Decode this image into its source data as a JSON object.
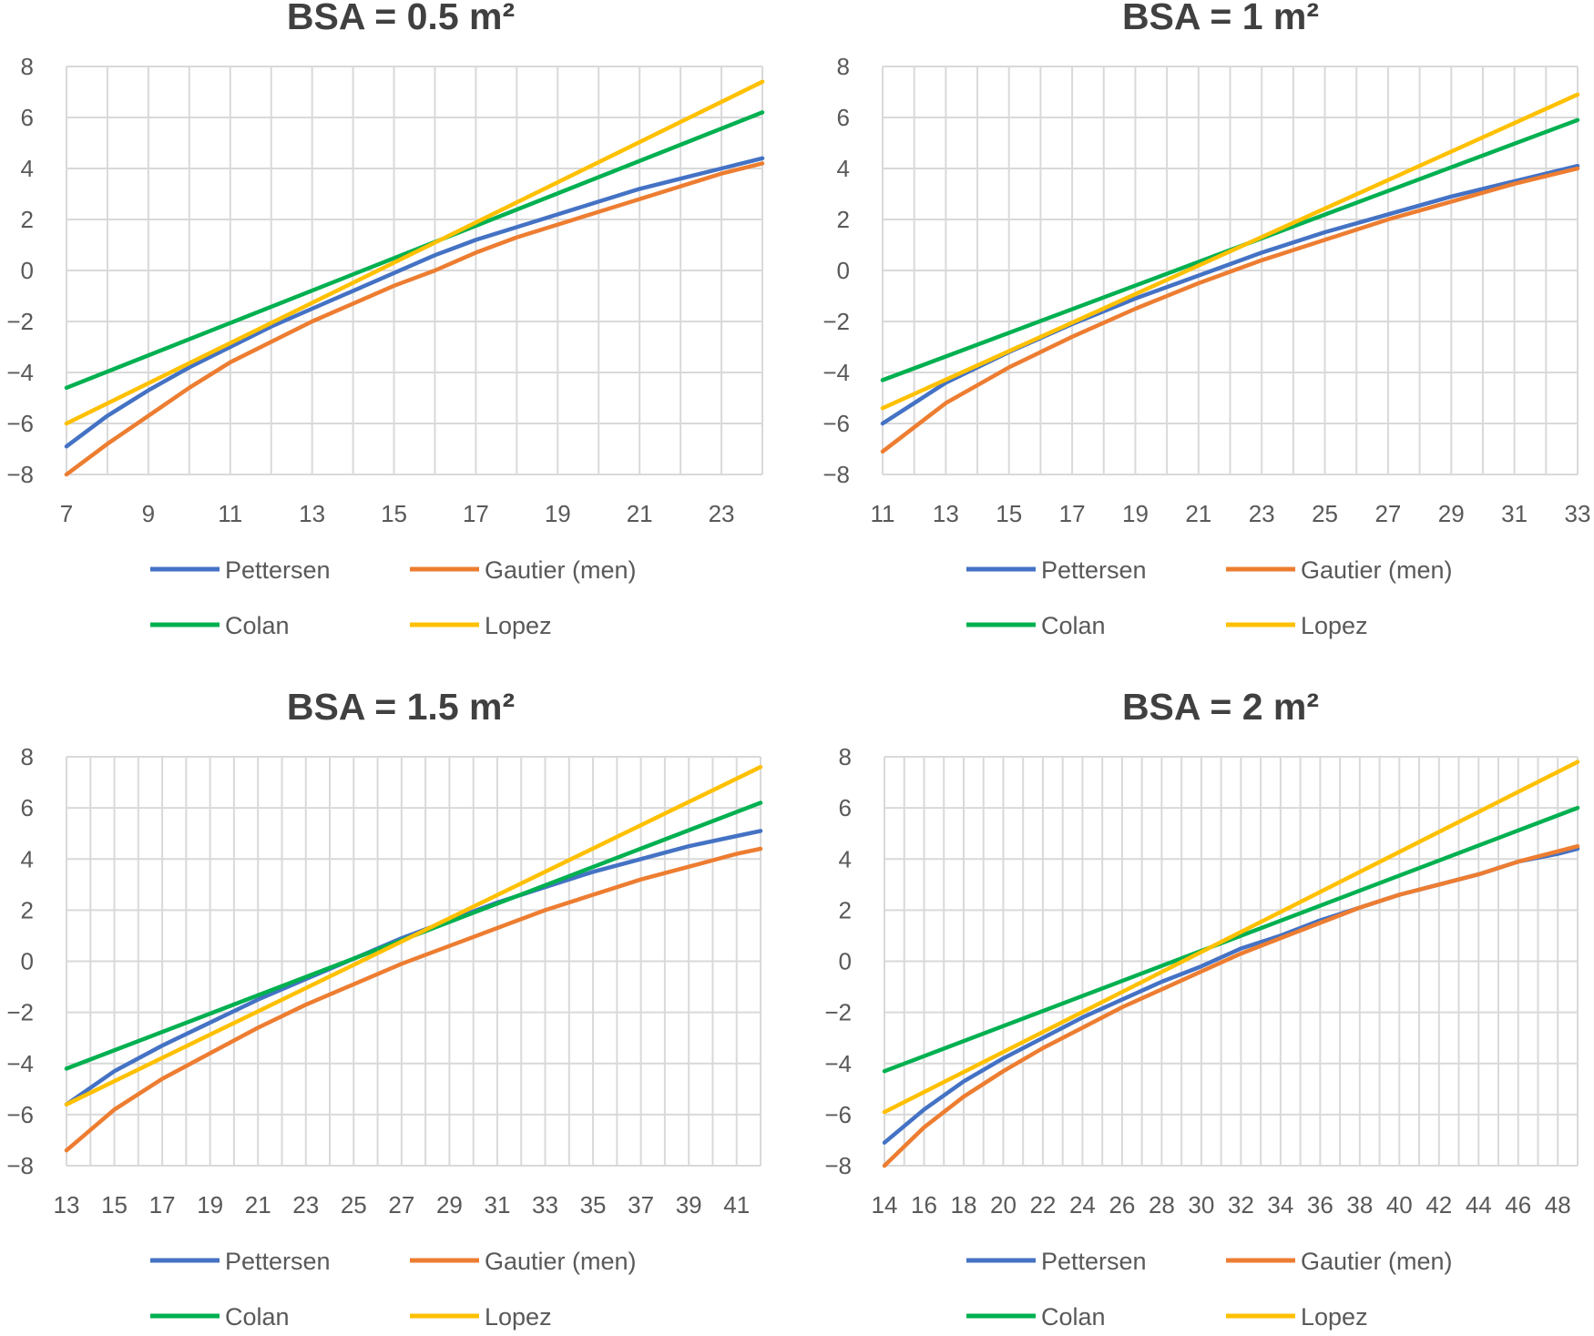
{
  "colors": {
    "Pettersen": "#4472C4",
    "Gautier (men)": "#ED7D31",
    "Colan": "#00B050",
    "Lopez": "#FFC000",
    "grid": "#D9D9D9"
  },
  "chart_data": [
    {
      "type": "line",
      "title": "BSA = 0.5 m²",
      "xlim": [
        7,
        24
      ],
      "ylim": [
        -8,
        8
      ],
      "xticks": [
        7,
        9,
        11,
        13,
        15,
        17,
        19,
        21,
        23
      ],
      "yticks": [
        -8,
        -6,
        -4,
        -2,
        0,
        2,
        4,
        6,
        8
      ],
      "grid": true,
      "legend": "bottom",
      "series": [
        {
          "name": "Pettersen",
          "x": [
            7,
            8,
            9,
            10,
            11,
            12,
            13,
            14,
            15,
            16,
            17,
            18,
            19,
            20,
            21,
            22,
            23,
            24
          ],
          "y": [
            -6.9,
            -5.7,
            -4.7,
            -3.8,
            -3.0,
            -2.2,
            -1.5,
            -0.8,
            -0.1,
            0.6,
            1.2,
            1.7,
            2.2,
            2.7,
            3.2,
            3.6,
            4.0,
            4.4
          ]
        },
        {
          "name": "Gautier (men)",
          "x": [
            7,
            8,
            9,
            10,
            11,
            12,
            13,
            14,
            15,
            16,
            17,
            18,
            19,
            20,
            21,
            22,
            23,
            24
          ],
          "y": [
            -8.0,
            -6.8,
            -5.7,
            -4.6,
            -3.6,
            -2.8,
            -2.0,
            -1.3,
            -0.6,
            0.0,
            0.7,
            1.3,
            1.8,
            2.3,
            2.8,
            3.3,
            3.8,
            4.2
          ]
        },
        {
          "name": "Colan",
          "x": [
            7,
            24
          ],
          "y": [
            -4.6,
            6.2
          ]
        },
        {
          "name": "Lopez",
          "x": [
            7,
            24
          ],
          "y": [
            -6.0,
            7.4
          ]
        }
      ]
    },
    {
      "type": "line",
      "title": "BSA = 1 m²",
      "xlim": [
        11,
        33
      ],
      "ylim": [
        -8,
        8
      ],
      "xticks": [
        11,
        13,
        15,
        17,
        19,
        21,
        23,
        25,
        27,
        29,
        31,
        33
      ],
      "yticks": [
        -8,
        -6,
        -4,
        -2,
        0,
        2,
        4,
        6,
        8
      ],
      "grid": true,
      "legend": "bottom",
      "series": [
        {
          "name": "Pettersen",
          "x": [
            11,
            13,
            15,
            17,
            19,
            21,
            23,
            25,
            27,
            29,
            31,
            33
          ],
          "y": [
            -6.0,
            -4.4,
            -3.2,
            -2.1,
            -1.1,
            -0.2,
            0.7,
            1.5,
            2.2,
            2.9,
            3.5,
            4.1
          ]
        },
        {
          "name": "Gautier (men)",
          "x": [
            11,
            13,
            15,
            17,
            19,
            21,
            23,
            25,
            27,
            29,
            31,
            33
          ],
          "y": [
            -7.1,
            -5.2,
            -3.8,
            -2.6,
            -1.5,
            -0.5,
            0.4,
            1.2,
            2.0,
            2.7,
            3.4,
            4.0
          ]
        },
        {
          "name": "Colan",
          "x": [
            11,
            33
          ],
          "y": [
            -4.3,
            5.9
          ]
        },
        {
          "name": "Lopez",
          "x": [
            11,
            33
          ],
          "y": [
            -5.4,
            6.9
          ]
        }
      ]
    },
    {
      "type": "line",
      "title": "BSA = 1.5 m²",
      "xlim": [
        13,
        42
      ],
      "ylim": [
        -8,
        8
      ],
      "xticks": [
        13,
        15,
        17,
        19,
        21,
        23,
        25,
        27,
        29,
        31,
        33,
        35,
        37,
        39,
        41
      ],
      "yticks": [
        -8,
        -6,
        -4,
        -2,
        0,
        2,
        4,
        6,
        8
      ],
      "grid": true,
      "legend": "bottom",
      "series": [
        {
          "name": "Pettersen",
          "x": [
            13,
            15,
            17,
            19,
            21,
            23,
            25,
            27,
            29,
            31,
            33,
            35,
            37,
            39,
            41,
            42
          ],
          "y": [
            -5.6,
            -4.3,
            -3.3,
            -2.4,
            -1.5,
            -0.7,
            0.1,
            0.9,
            1.6,
            2.3,
            2.9,
            3.5,
            4.0,
            4.5,
            4.9,
            5.1
          ]
        },
        {
          "name": "Gautier (men)",
          "x": [
            13,
            15,
            17,
            19,
            21,
            23,
            25,
            27,
            29,
            31,
            33,
            35,
            37,
            39,
            41,
            42
          ],
          "y": [
            -7.4,
            -5.8,
            -4.6,
            -3.6,
            -2.6,
            -1.7,
            -0.9,
            -0.1,
            0.6,
            1.3,
            2.0,
            2.6,
            3.2,
            3.7,
            4.2,
            4.4
          ]
        },
        {
          "name": "Colan",
          "x": [
            13,
            42
          ],
          "y": [
            -4.2,
            6.2
          ]
        },
        {
          "name": "Lopez",
          "x": [
            13,
            42
          ],
          "y": [
            -5.6,
            7.6
          ]
        }
      ]
    },
    {
      "type": "line",
      "title": "BSA = 2 m²",
      "xlim": [
        14,
        49
      ],
      "ylim": [
        -8,
        8
      ],
      "xticks": [
        14,
        16,
        18,
        20,
        22,
        24,
        26,
        28,
        30,
        32,
        34,
        36,
        38,
        40,
        42,
        44,
        46,
        48
      ],
      "yticks": [
        -8,
        -6,
        -4,
        -2,
        0,
        2,
        4,
        6,
        8
      ],
      "grid": true,
      "legend": "bottom",
      "series": [
        {
          "name": "Pettersen",
          "x": [
            14,
            16,
            18,
            20,
            22,
            24,
            26,
            28,
            30,
            32,
            34,
            36,
            38,
            40,
            42,
            44,
            46,
            48,
            49
          ],
          "y": [
            -7.1,
            -5.8,
            -4.7,
            -3.8,
            -3.0,
            -2.2,
            -1.5,
            -0.8,
            -0.2,
            0.5,
            1.0,
            1.6,
            2.1,
            2.6,
            3.0,
            3.4,
            3.9,
            4.2,
            4.4
          ]
        },
        {
          "name": "Gautier (men)",
          "x": [
            14,
            16,
            18,
            20,
            22,
            24,
            26,
            28,
            30,
            32,
            34,
            36,
            38,
            40,
            42,
            44,
            46,
            48,
            49
          ],
          "y": [
            -8.0,
            -6.5,
            -5.3,
            -4.3,
            -3.4,
            -2.6,
            -1.8,
            -1.1,
            -0.4,
            0.3,
            0.9,
            1.5,
            2.1,
            2.6,
            3.0,
            3.4,
            3.9,
            4.3,
            4.5
          ]
        },
        {
          "name": "Colan",
          "x": [
            14,
            49
          ],
          "y": [
            -4.3,
            6.0
          ]
        },
        {
          "name": "Lopez",
          "x": [
            14,
            49
          ],
          "y": [
            -5.9,
            7.8
          ]
        }
      ]
    }
  ]
}
